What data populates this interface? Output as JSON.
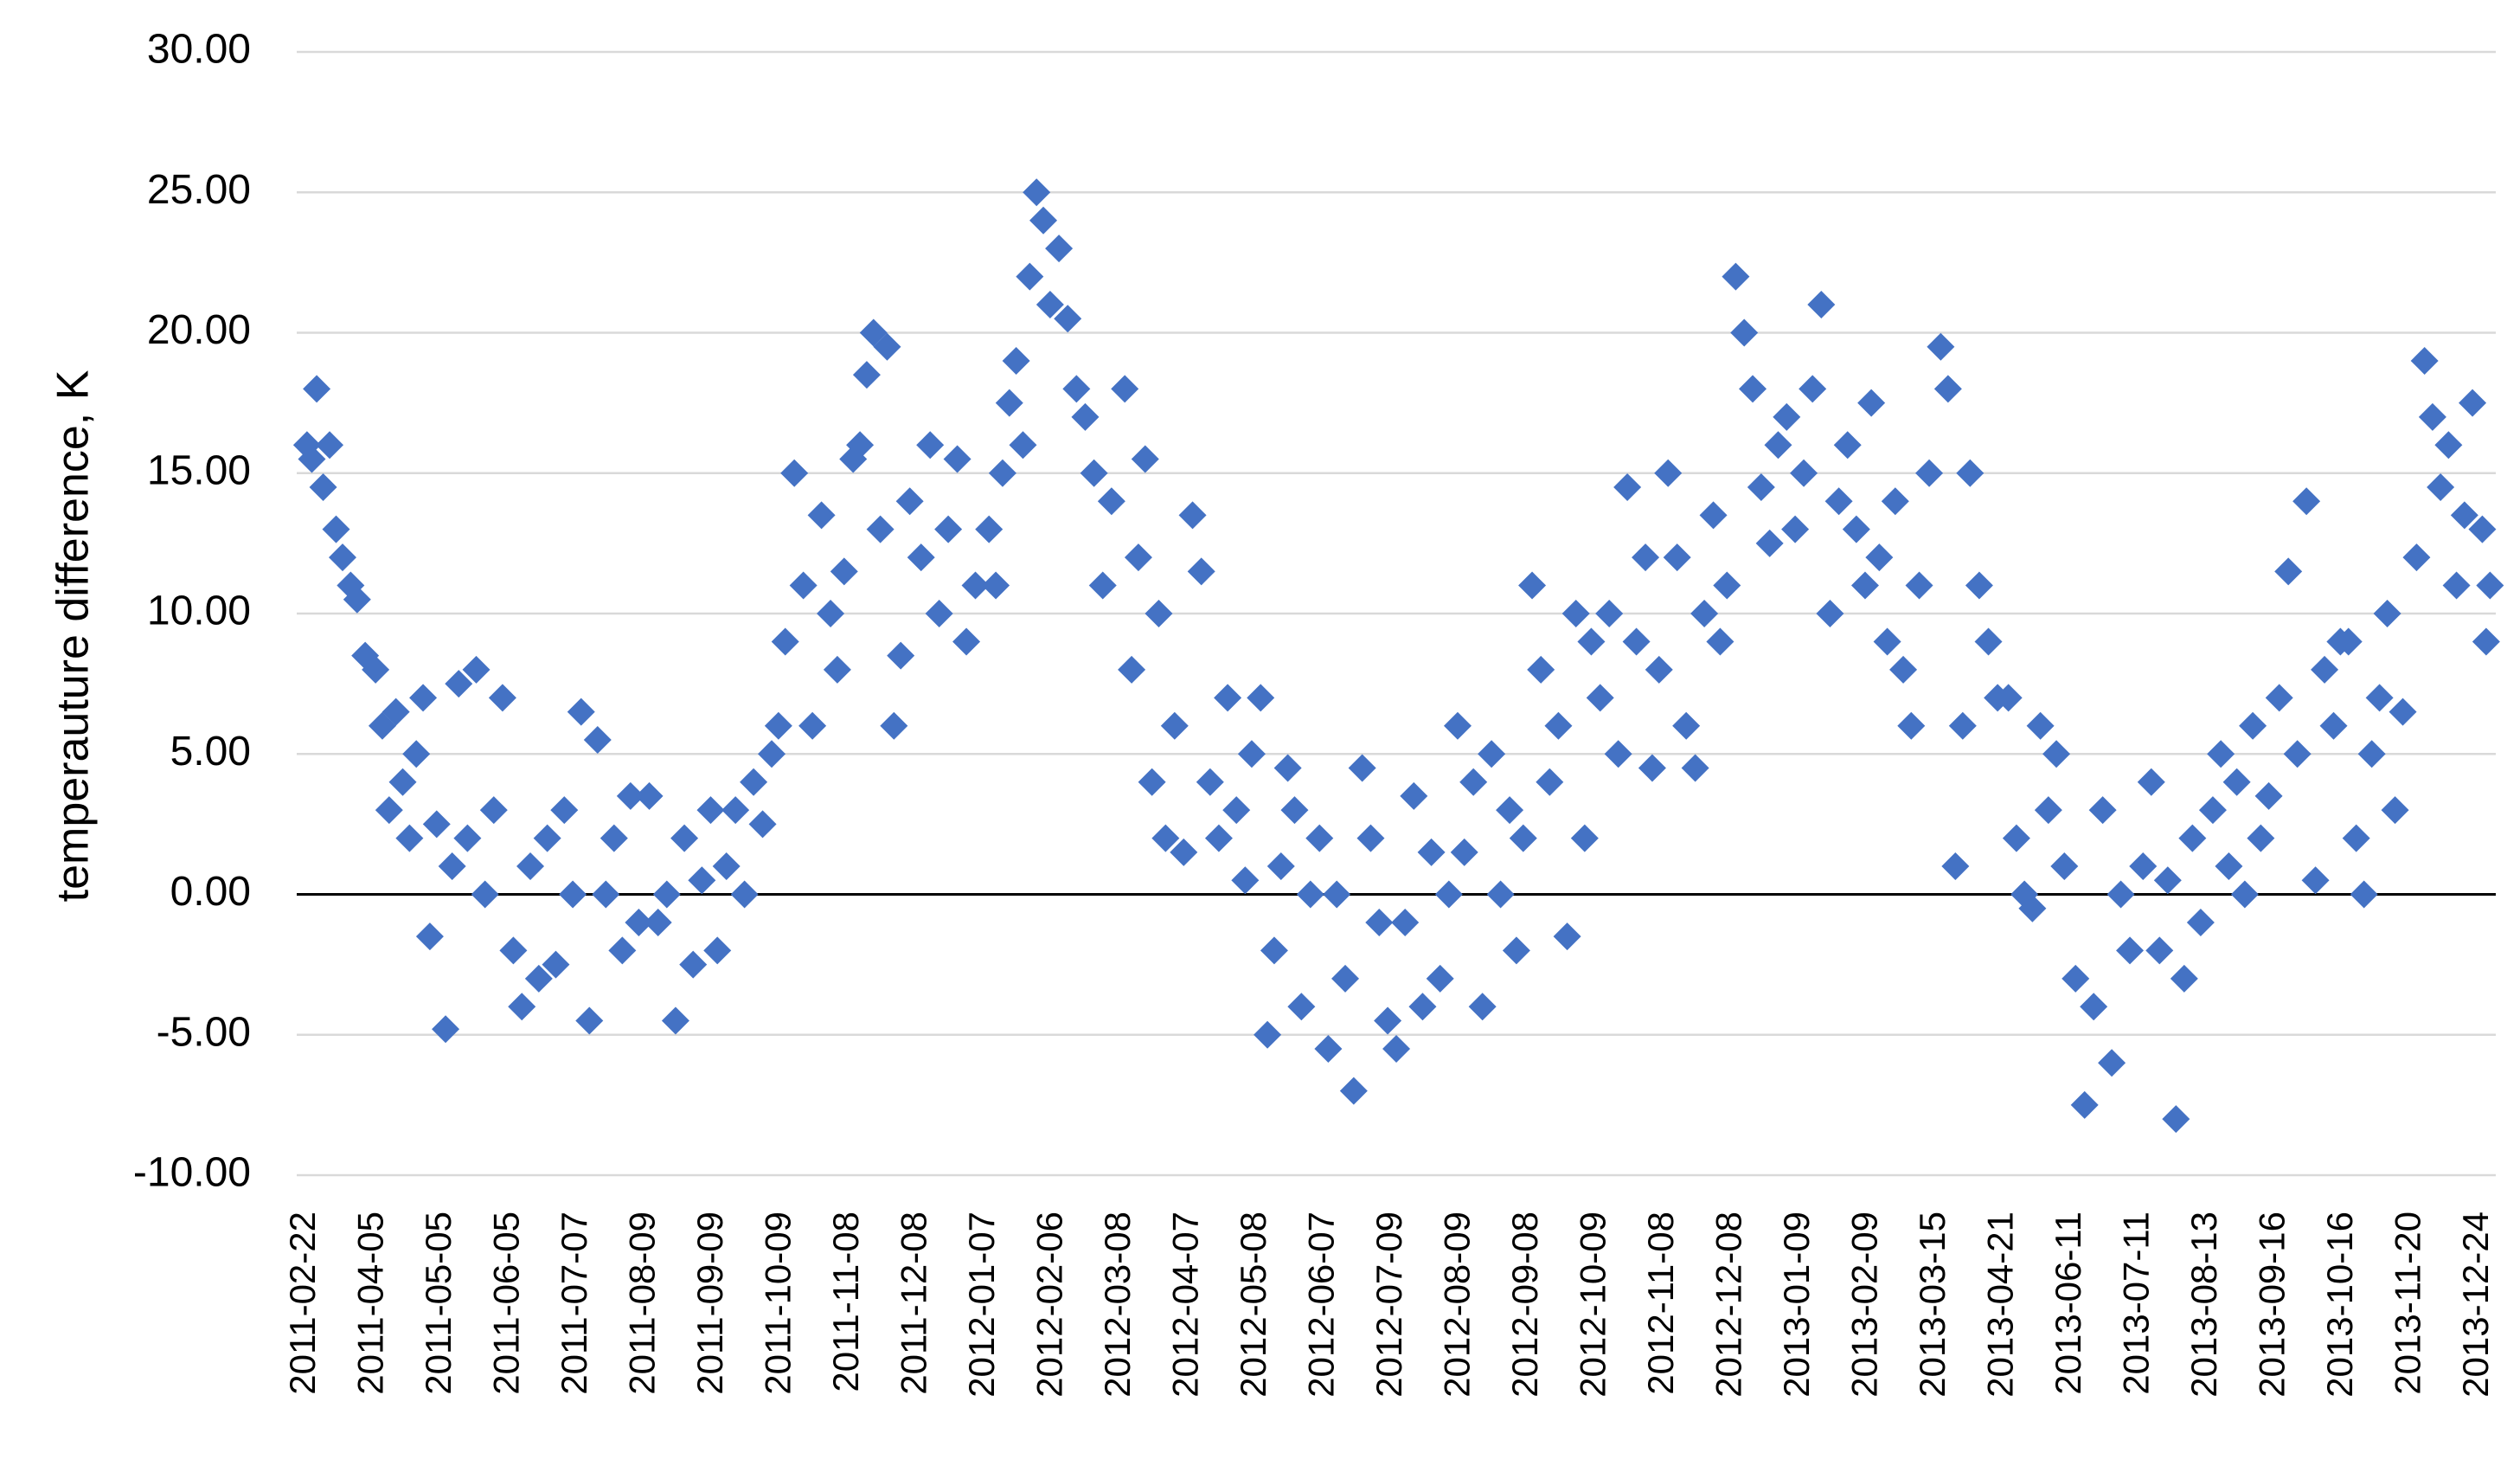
{
  "chart_data": {
    "type": "scatter",
    "y_label": "temperauture difference, K",
    "ylim": [
      -10,
      30
    ],
    "yticks": [
      {
        "value": -10,
        "label": "-10.00"
      },
      {
        "value": -5,
        "label": "-5.00"
      },
      {
        "value": 0,
        "label": "0.00"
      },
      {
        "value": 5,
        "label": "5.00"
      },
      {
        "value": 10,
        "label": "10.00"
      },
      {
        "value": 15,
        "label": "15.00"
      },
      {
        "value": 20,
        "label": "20.00"
      },
      {
        "value": 25,
        "label": "25.00"
      },
      {
        "value": 30,
        "label": "30.00"
      }
    ],
    "xlim": [
      "2011-02-17",
      "2014-01-02"
    ],
    "xticks": [
      "2011-02-22",
      "2011-04-05",
      "2011-05-05",
      "2011-06-05",
      "2011-07-07",
      "2011-08-09",
      "2011-09-09",
      "2011-10-09",
      "2011-11-08",
      "2011-12-08",
      "2012-01-07",
      "2012-02-06",
      "2012-03-08",
      "2012-04-07",
      "2012-05-08",
      "2012-06-07",
      "2012-07-09",
      "2012-08-09",
      "2012-09-08",
      "2012-10-09",
      "2012-11-08",
      "2012-12-08",
      "2013-01-09",
      "2013-02-09",
      "2013-03-15",
      "2013-04-21",
      "2013-06-11",
      "2013-07-11",
      "2013-08-13",
      "2013-09-16",
      "2013-10-16",
      "2013-11-20",
      "2013-12-24"
    ],
    "grid": true,
    "x": [
      "2011-02-23",
      "2011-02-26",
      "2011-03-01",
      "2011-03-05",
      "2011-03-09",
      "2011-03-13",
      "2011-03-17",
      "2011-03-22",
      "2011-03-26",
      "2011-03-31",
      "2011-04-06",
      "2011-04-09",
      "2011-04-12",
      "2011-04-15",
      "2011-04-18",
      "2011-04-21",
      "2011-04-24",
      "2011-04-27",
      "2011-04-30",
      "2011-05-03",
      "2011-05-07",
      "2011-05-10",
      "2011-05-13",
      "2011-05-17",
      "2011-05-21",
      "2011-05-25",
      "2011-05-29",
      "2011-06-02",
      "2011-06-07",
      "2011-06-11",
      "2011-06-15",
      "2011-06-19",
      "2011-06-23",
      "2011-06-27",
      "2011-07-01",
      "2011-07-05",
      "2011-07-09",
      "2011-07-13",
      "2011-07-17",
      "2011-07-21",
      "2011-07-25",
      "2011-07-29",
      "2011-08-02",
      "2011-08-06",
      "2011-08-11",
      "2011-08-15",
      "2011-08-19",
      "2011-08-23",
      "2011-08-27",
      "2011-08-31",
      "2011-09-04",
      "2011-09-08",
      "2011-09-11",
      "2011-09-15",
      "2011-09-19",
      "2011-09-23",
      "2011-09-27",
      "2011-10-01",
      "2011-10-05",
      "2011-10-08",
      "2011-10-11",
      "2011-10-15",
      "2011-10-19",
      "2011-10-23",
      "2011-10-27",
      "2011-10-31",
      "2011-11-03",
      "2011-11-06",
      "2011-11-10",
      "2011-11-13",
      "2011-11-16",
      "2011-11-19",
      "2011-11-22",
      "2011-11-25",
      "2011-11-28",
      "2011-12-01",
      "2011-12-05",
      "2011-12-10",
      "2011-12-14",
      "2011-12-18",
      "2011-12-22",
      "2011-12-26",
      "2011-12-30",
      "2012-01-03",
      "2012-01-09",
      "2012-01-12",
      "2012-01-15",
      "2012-01-18",
      "2012-01-21",
      "2012-01-24",
      "2012-01-27",
      "2012-01-30",
      "2012-02-02",
      "2012-02-05",
      "2012-02-09",
      "2012-02-13",
      "2012-02-17",
      "2012-02-21",
      "2012-02-25",
      "2012-02-29",
      "2012-03-04",
      "2012-03-10",
      "2012-03-13",
      "2012-03-16",
      "2012-03-19",
      "2012-03-22",
      "2012-03-25",
      "2012-03-28",
      "2012-04-01",
      "2012-04-05",
      "2012-04-09",
      "2012-04-13",
      "2012-04-17",
      "2012-04-21",
      "2012-04-25",
      "2012-04-29",
      "2012-05-03",
      "2012-05-06",
      "2012-05-10",
      "2012-05-13",
      "2012-05-16",
      "2012-05-19",
      "2012-05-22",
      "2012-05-25",
      "2012-05-28",
      "2012-06-01",
      "2012-06-05",
      "2012-06-09",
      "2012-06-13",
      "2012-06-17",
      "2012-06-21",
      "2012-06-25",
      "2012-06-29",
      "2012-07-03",
      "2012-07-07",
      "2012-07-11",
      "2012-07-15",
      "2012-07-19",
      "2012-07-23",
      "2012-07-27",
      "2012-07-31",
      "2012-08-04",
      "2012-08-08",
      "2012-08-11",
      "2012-08-15",
      "2012-08-19",
      "2012-08-23",
      "2012-08-27",
      "2012-08-31",
      "2012-09-03",
      "2012-09-06",
      "2012-09-10",
      "2012-09-14",
      "2012-09-18",
      "2012-09-22",
      "2012-09-26",
      "2012-09-30",
      "2012-10-04",
      "2012-10-07",
      "2012-10-11",
      "2012-10-15",
      "2012-10-19",
      "2012-10-23",
      "2012-10-27",
      "2012-10-31",
      "2012-11-03",
      "2012-11-06",
      "2012-11-10",
      "2012-11-14",
      "2012-11-18",
      "2012-11-22",
      "2012-11-26",
      "2012-11-30",
      "2012-12-03",
      "2012-12-06",
      "2012-12-10",
      "2012-12-14",
      "2012-12-18",
      "2012-12-22",
      "2012-12-26",
      "2012-12-30",
      "2013-01-03",
      "2013-01-07",
      "2013-01-11",
      "2013-01-15",
      "2013-01-19",
      "2013-01-23",
      "2013-01-27",
      "2013-01-31",
      "2013-02-04",
      "2013-02-08",
      "2013-02-11",
      "2013-02-15",
      "2013-02-19",
      "2013-02-23",
      "2013-02-27",
      "2013-03-03",
      "2013-03-07",
      "2013-03-12",
      "2013-03-18",
      "2013-03-22",
      "2013-03-26",
      "2013-03-30",
      "2013-04-03",
      "2013-04-08",
      "2013-04-13",
      "2013-04-18",
      "2013-04-25",
      "2013-05-01",
      "2013-05-07",
      "2013-05-13",
      "2013-05-19",
      "2013-05-25",
      "2013-05-31",
      "2013-06-06",
      "2013-06-13",
      "2013-06-17",
      "2013-06-21",
      "2013-06-25",
      "2013-06-29",
      "2013-07-03",
      "2013-07-07",
      "2013-07-13",
      "2013-07-17",
      "2013-07-21",
      "2013-07-25",
      "2013-07-29",
      "2013-08-02",
      "2013-08-06",
      "2013-08-10",
      "2013-08-16",
      "2013-08-20",
      "2013-08-24",
      "2013-08-28",
      "2013-09-01",
      "2013-09-05",
      "2013-09-09",
      "2013-09-13",
      "2013-09-18",
      "2013-09-22",
      "2013-09-26",
      "2013-09-30",
      "2013-10-04",
      "2013-10-08",
      "2013-10-12",
      "2013-10-15",
      "2013-10-19",
      "2013-10-23",
      "2013-10-27",
      "2013-10-31",
      "2013-11-04",
      "2013-11-08",
      "2013-11-12",
      "2013-11-16",
      "2013-11-23",
      "2013-11-27",
      "2013-12-01",
      "2013-12-05",
      "2013-12-09",
      "2013-12-13",
      "2013-12-17",
      "2013-12-21",
      "2013-12-26",
      "2013-12-28",
      "2013-12-30"
    ],
    "series": [
      {
        "color": "#4472c4",
        "values": [
          16,
          15.5,
          18,
          14.5,
          16,
          13,
          12,
          11,
          10.5,
          8.5,
          8,
          6,
          3,
          6.5,
          4,
          2,
          5,
          7,
          -1.5,
          2.5,
          -4.8,
          1,
          7.5,
          2,
          8,
          0,
          3,
          7,
          -2,
          -4,
          1,
          -3,
          2,
          -2.5,
          3,
          0,
          6.5,
          -4.5,
          5.5,
          0,
          2,
          -2,
          3.5,
          -1,
          3.5,
          -1,
          0,
          -4.5,
          2,
          -2.5,
          0.5,
          3,
          -2,
          1,
          3,
          0,
          4,
          2.5,
          5,
          6,
          9,
          15,
          11,
          6,
          13.5,
          10,
          8,
          11.5,
          15.5,
          16,
          18.5,
          20,
          13,
          19.5,
          6,
          8.5,
          14,
          12,
          16,
          10,
          13,
          15.5,
          9,
          11,
          13,
          11,
          15,
          17.5,
          19,
          16,
          22,
          25,
          24,
          21,
          23,
          20.5,
          18,
          17,
          15,
          11,
          14,
          18,
          8,
          12,
          15.5,
          4,
          10,
          2,
          6,
          1.5,
          13.5,
          11.5,
          4,
          2,
          7,
          3,
          0.5,
          5,
          7,
          -5,
          -2,
          1,
          4.5,
          3,
          -4,
          0,
          2,
          -5.5,
          0,
          -3,
          -7,
          4.5,
          2,
          -1,
          -4.5,
          -5.5,
          -1,
          3.5,
          -4,
          1.5,
          -3,
          0,
          6,
          1.5,
          4,
          -4,
          5,
          0,
          3,
          -2,
          2,
          11,
          8,
          4,
          6,
          -1.5,
          10,
          2,
          9,
          7,
          10,
          5,
          14.5,
          9,
          12,
          4.5,
          8,
          15,
          12,
          6,
          4.5,
          10,
          13.5,
          9,
          11,
          22,
          20,
          18,
          14.5,
          12.5,
          16,
          17,
          13,
          15,
          18,
          21,
          10,
          14,
          16,
          13,
          11,
          17.5,
          12,
          9,
          14,
          8,
          6,
          11,
          15,
          19.5,
          18,
          1,
          6,
          15,
          11,
          9,
          7,
          7,
          2,
          0,
          -0.5,
          6,
          3,
          5,
          1,
          -3,
          -7.5,
          -4,
          3,
          -6,
          0,
          -2,
          1,
          4,
          -2,
          0.5,
          -8,
          -3,
          2,
          -1,
          3,
          5,
          1,
          4,
          0,
          6,
          2,
          3.5,
          7,
          11.5,
          5,
          14,
          0.5,
          8,
          6,
          9,
          9,
          2,
          0,
          5,
          7,
          10,
          3,
          6.5,
          12,
          19,
          17,
          14.5,
          16,
          11,
          13.5,
          17.5,
          13,
          9,
          11
        ]
      }
    ]
  }
}
